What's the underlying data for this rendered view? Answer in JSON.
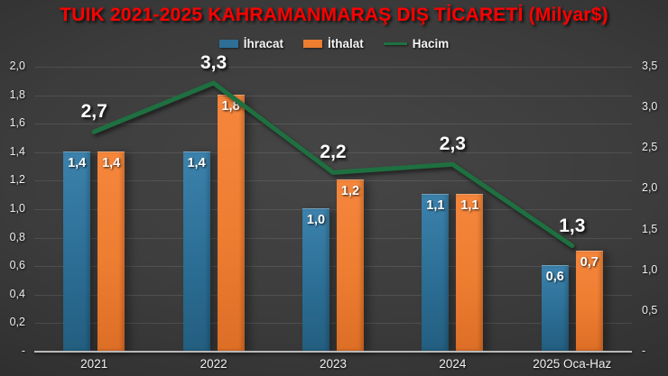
{
  "title": "TUIK 2021-2025 KAHRAMANMARAŞ DIŞ TİCARETİ (Milyar$)",
  "colors": {
    "title": "#fe0000",
    "ihracat_bar": "#2d6f97",
    "ithalat_bar": "#ed7d31",
    "hacim_line": "#1e7040",
    "background": "#3c3c3c",
    "axis_text": "#ececec"
  },
  "chart_data": {
    "type": "bar",
    "subtype": "grouped bars with line overlay on secondary axis",
    "title": "TUIK 2021-2025 KAHRAMANMARAŞ DIŞ TİCARETİ (Milyar$)",
    "categories": [
      "2021",
      "2022",
      "2023",
      "2024",
      "2025 Oca-Haz"
    ],
    "series": [
      {
        "name": "İhracat",
        "type": "bar",
        "axis": "left",
        "color": "#2d6f97",
        "values": [
          1.4,
          1.4,
          1.0,
          1.1,
          0.6
        ],
        "labels": [
          "1,4",
          "1,4",
          "1,0",
          "1,1",
          "0,6"
        ]
      },
      {
        "name": "İthalat",
        "type": "bar",
        "axis": "left",
        "color": "#ed7d31",
        "values": [
          1.4,
          1.8,
          1.2,
          1.1,
          0.7
        ],
        "labels": [
          "1,4",
          "1,8",
          "1,2",
          "1,1",
          "0,7"
        ]
      },
      {
        "name": "Hacim",
        "type": "line",
        "axis": "right",
        "color": "#1e7040",
        "values": [
          2.7,
          3.3,
          2.2,
          2.3,
          1.3
        ],
        "labels": [
          "2,7",
          "3,3",
          "2,2",
          "2,3",
          "1,3"
        ]
      }
    ],
    "left_axis": {
      "min": 0,
      "max": 2.0,
      "ticks": [
        "2,0",
        "1,8",
        "1,6",
        "1,4",
        "1,2",
        "1,0",
        "0,8",
        "0,6",
        "0,4",
        "0,2",
        "-"
      ]
    },
    "right_axis": {
      "min": 0,
      "max": 3.5,
      "ticks": [
        "3,5",
        "3,0",
        "2,5",
        "2,0",
        "1,5",
        "1,0",
        "0,5",
        "-"
      ]
    },
    "grid": true,
    "legend_position": "top",
    "xlabel": "",
    "ylabel": ""
  }
}
